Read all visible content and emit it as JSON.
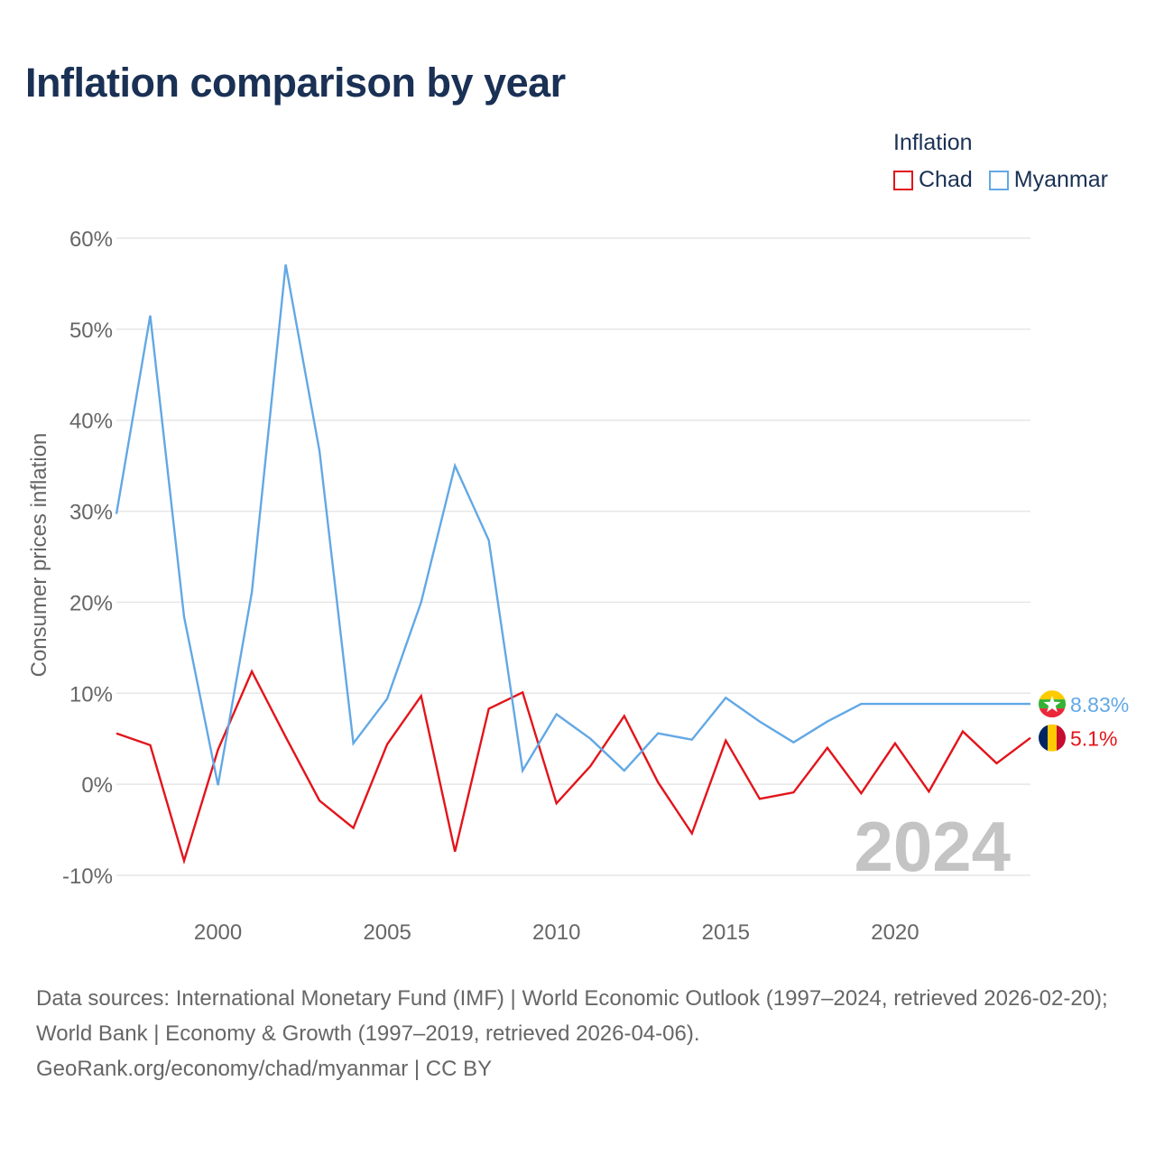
{
  "title": "Inflation comparison by year",
  "legend": {
    "title": "Inflation",
    "items": [
      {
        "label": "Chad",
        "color": "#e3141b"
      },
      {
        "label": "Myanmar",
        "color": "#62a8e5"
      }
    ]
  },
  "chart_data": {
    "type": "line",
    "title": "Inflation comparison by year",
    "xlabel": "",
    "ylabel": "Consumer prices inflation",
    "xlim": [
      1997,
      2024
    ],
    "ylim": [
      -10,
      60
    ],
    "yticks": [
      -10,
      0,
      10,
      20,
      30,
      40,
      50,
      60
    ],
    "ytick_labels": [
      "-10%",
      "0%",
      "10%",
      "20%",
      "30%",
      "40%",
      "50%",
      "60%"
    ],
    "xticks": [
      2000,
      2005,
      2010,
      2015,
      2020
    ],
    "xtick_labels": [
      "2000",
      "2005",
      "2010",
      "2015",
      "2020"
    ],
    "grid": true,
    "year_label": "2024",
    "x": [
      1997,
      1998,
      1999,
      2000,
      2001,
      2002,
      2003,
      2004,
      2005,
      2006,
      2007,
      2008,
      2009,
      2010,
      2011,
      2012,
      2013,
      2014,
      2015,
      2016,
      2017,
      2018,
      2019,
      2020,
      2021,
      2022,
      2023,
      2024
    ],
    "series": [
      {
        "name": "Chad",
        "color": "#e3141b",
        "end_label": "5.1%",
        "values": [
          5.6,
          4.3,
          -8.4,
          3.8,
          12.4,
          5.2,
          -1.8,
          -4.8,
          4.4,
          9.7,
          -7.4,
          8.3,
          10.1,
          -2.1,
          2.0,
          7.5,
          0.2,
          -5.4,
          4.8,
          -1.6,
          -0.9,
          4.0,
          -1.0,
          4.5,
          -0.8,
          5.8,
          2.3,
          5.1
        ]
      },
      {
        "name": "Myanmar",
        "color": "#62a8e5",
        "end_label": "8.83%",
        "values": [
          29.7,
          51.5,
          18.4,
          -0.1,
          21.1,
          57.1,
          36.6,
          4.5,
          9.4,
          20.0,
          35.0,
          26.8,
          1.5,
          7.7,
          5.0,
          1.5,
          5.6,
          4.9,
          9.5,
          6.9,
          4.6,
          6.9,
          8.83,
          8.83,
          8.83,
          8.83,
          8.83,
          8.83
        ]
      }
    ]
  },
  "footer": {
    "sources": "Data sources: International Monetary Fund (IMF) | World Economic Outlook (1997–2024, retrieved 2026-02-20); World Bank | Economy & Growth (1997–2019, retrieved 2026-04-06).",
    "credit": "GeoRank.org/economy/chad/myanmar | CC BY"
  }
}
